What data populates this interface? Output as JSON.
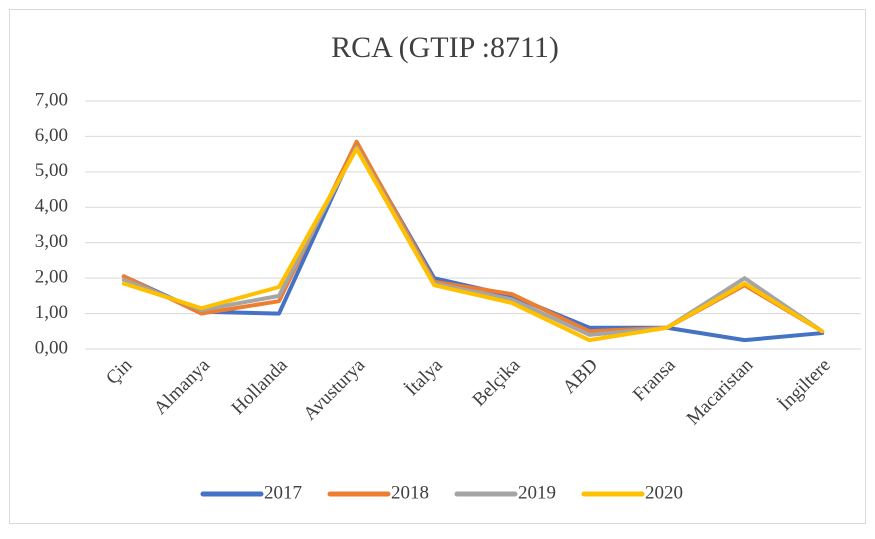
{
  "chart_data": {
    "type": "line",
    "title": "RCA (GTIP :8711)",
    "categories": [
      "Çin",
      "Almanya",
      "Hollanda",
      "Avusturya",
      "İtalya",
      "Belçika",
      "ABD",
      "Fransa",
      "Macaristan",
      "İngiltere"
    ],
    "series": [
      {
        "name": "2017",
        "color": "#4472c4",
        "values": [
          2.05,
          1.05,
          1.0,
          5.8,
          2.0,
          1.5,
          0.6,
          0.6,
          0.25,
          0.45
        ]
      },
      {
        "name": "2018",
        "color": "#ed7d31",
        "values": [
          2.05,
          1.0,
          1.35,
          5.85,
          1.9,
          1.55,
          0.5,
          0.6,
          1.8,
          0.5
        ]
      },
      {
        "name": "2019",
        "color": "#a5a5a5",
        "values": [
          1.95,
          1.1,
          1.5,
          5.7,
          1.85,
          1.4,
          0.4,
          0.6,
          2.0,
          0.5
        ]
      },
      {
        "name": "2020",
        "color": "#ffc000",
        "values": [
          1.85,
          1.15,
          1.75,
          5.65,
          1.8,
          1.3,
          0.25,
          0.6,
          1.85,
          0.5
        ]
      }
    ],
    "ylim": [
      0,
      7
    ],
    "yticks": [
      {
        "value": 0,
        "label": "0,00"
      },
      {
        "value": 1,
        "label": "1,00"
      },
      {
        "value": 2,
        "label": "2,00"
      },
      {
        "value": 3,
        "label": "3,00"
      },
      {
        "value": 4,
        "label": "4,00"
      },
      {
        "value": 5,
        "label": "5,00"
      },
      {
        "value": 6,
        "label": "6,00"
      },
      {
        "value": 7,
        "label": "7,00"
      }
    ],
    "grid": true,
    "legend": "bottom"
  }
}
